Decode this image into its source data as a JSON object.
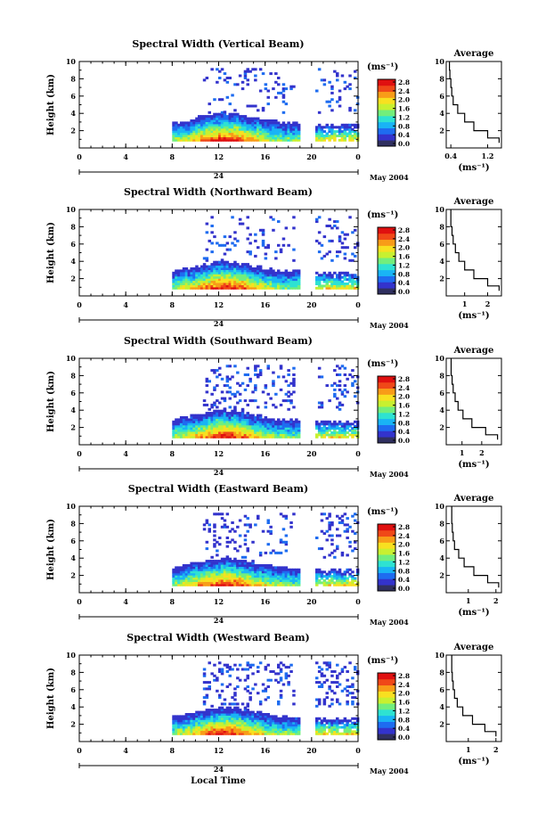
{
  "figure": {
    "x_axis_label": "Local Time",
    "date_label": "May 2004",
    "day_label": "24",
    "x_ticks": [
      "0",
      "4",
      "8",
      "12",
      "16",
      "20",
      "0"
    ],
    "height_label": "Height (km)",
    "height_ticks": [
      "2",
      "4",
      "6",
      "8",
      "10"
    ],
    "unit_label": "(ms⁻¹)",
    "average_title": "Average",
    "colorbar_ticks": [
      "0.0",
      "0.4",
      "0.8",
      "1.2",
      "1.6",
      "2.0",
      "2.4",
      "2.8"
    ],
    "colorbar_colors": [
      "#303060",
      "#3333cc",
      "#1e6cf0",
      "#19b4f5",
      "#2ee2d2",
      "#72ee7c",
      "#c8f030",
      "#f8e020",
      "#f89c18",
      "#f04818",
      "#e01010"
    ]
  },
  "chart_data": [
    {
      "type": "heatmap",
      "title": "Spectral Width (Vertical Beam)",
      "xlabel": "Local Time",
      "ylabel": "Height (km)",
      "xlim": [
        0,
        24
      ],
      "ylim": [
        0,
        10
      ],
      "colorbar_range": [
        0.0,
        2.8
      ],
      "data_gaps": [
        [
          0,
          8
        ],
        [
          18.8,
          20.2
        ]
      ],
      "profile": {
        "title": "Average",
        "xlabel": "(ms⁻¹)",
        "xlim": [
          0.3,
          1.5
        ],
        "x_ticks": [
          "0.4",
          "1.2"
        ],
        "heights": [
          0.8,
          1.5,
          2.5,
          3.5,
          4.5,
          5.5,
          6.5,
          7.5,
          8.5,
          9.5
        ],
        "values": [
          1.45,
          1.2,
          0.9,
          0.7,
          0.55,
          0.45,
          0.42,
          0.4,
          0.38,
          0.37
        ]
      }
    },
    {
      "type": "heatmap",
      "title": "Spectral Width (Northward Beam)",
      "xlabel": "Local Time",
      "ylabel": "Height (km)",
      "xlim": [
        0,
        24
      ],
      "ylim": [
        0,
        10
      ],
      "colorbar_range": [
        0.0,
        2.8
      ],
      "data_gaps": [
        [
          0,
          8
        ],
        [
          18.8,
          20.2
        ]
      ],
      "profile": {
        "title": "Average",
        "xlabel": "(ms⁻¹)",
        "xlim": [
          0.2,
          2.6
        ],
        "x_ticks": [
          "1",
          "2"
        ],
        "heights": [
          0.8,
          1.5,
          2.5,
          3.5,
          4.5,
          5.5,
          6.5,
          7.5,
          8.5,
          9.5
        ],
        "values": [
          2.5,
          2.0,
          1.4,
          1.0,
          0.75,
          0.6,
          0.5,
          0.45,
          0.4,
          0.4
        ]
      }
    },
    {
      "type": "heatmap",
      "title": "Spectral Width (Southward Beam)",
      "xlabel": "Local Time",
      "ylabel": "Height (km)",
      "xlim": [
        0,
        24
      ],
      "ylim": [
        0,
        10
      ],
      "colorbar_range": [
        0.0,
        2.8
      ],
      "data_gaps": [
        [
          0,
          8
        ],
        [
          18.8,
          20.2
        ]
      ],
      "profile": {
        "title": "Average",
        "xlabel": "(ms⁻¹)",
        "xlim": [
          0.2,
          3.0
        ],
        "x_ticks": [
          "1",
          "2"
        ],
        "heights": [
          0.8,
          1.5,
          2.5,
          3.5,
          4.5,
          5.5,
          6.5,
          7.5,
          8.5,
          9.5
        ],
        "values": [
          2.8,
          2.2,
          1.5,
          1.05,
          0.8,
          0.65,
          0.55,
          0.5,
          0.45,
          0.45
        ]
      }
    },
    {
      "type": "heatmap",
      "title": "Spectral Width (Eastward Beam)",
      "xlabel": "Local Time",
      "ylabel": "Height (km)",
      "xlim": [
        0,
        24
      ],
      "ylim": [
        0,
        10
      ],
      "colorbar_range": [
        0.0,
        2.8
      ],
      "data_gaps": [
        [
          0,
          8
        ],
        [
          18.8,
          20.2
        ]
      ],
      "profile": {
        "title": "Average",
        "xlabel": "(ms⁻¹)",
        "xlim": [
          0.2,
          2.2
        ],
        "x_ticks": [
          "1",
          "2"
        ],
        "heights": [
          0.8,
          1.5,
          2.5,
          3.5,
          4.5,
          5.5,
          6.5,
          7.5,
          8.5,
          9.5
        ],
        "values": [
          2.1,
          1.7,
          1.2,
          0.85,
          0.65,
          0.5,
          0.45,
          0.42,
          0.4,
          0.4
        ]
      }
    },
    {
      "type": "heatmap",
      "title": "Spectral Width (Westward Beam)",
      "xlabel": "Local Time",
      "ylabel": "Height (km)",
      "xlim": [
        0,
        24
      ],
      "ylim": [
        0,
        10
      ],
      "colorbar_range": [
        0.0,
        2.8
      ],
      "data_gaps": [
        [
          0,
          8
        ],
        [
          18.8,
          20.2
        ]
      ],
      "profile": {
        "title": "Average",
        "xlabel": "(ms⁻¹)",
        "xlim": [
          0.2,
          2.2
        ],
        "x_ticks": [
          "1",
          "2"
        ],
        "heights": [
          0.8,
          1.5,
          2.5,
          3.5,
          4.5,
          5.5,
          6.5,
          7.5,
          8.5,
          9.5
        ],
        "values": [
          2.0,
          1.6,
          1.15,
          0.8,
          0.6,
          0.5,
          0.45,
          0.42,
          0.4,
          0.4
        ]
      }
    }
  ]
}
